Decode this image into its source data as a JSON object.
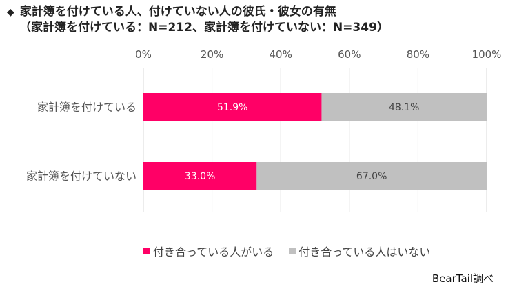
{
  "title": {
    "bullet": "◆",
    "line1": "家計簿を付けている人、付けていない人の彼氏・彼女の有無",
    "line2": "（家計簿を付けている：N=212、家計簿を付けていない：N=349）"
  },
  "chart_data": {
    "type": "bar",
    "orientation": "horizontal",
    "stacked": true,
    "categories": [
      "家計簿を付けている",
      "家計簿を付けていない"
    ],
    "series": [
      {
        "name": "付き合っている人がいる",
        "values": [
          51.9,
          33.0
        ],
        "labels": [
          "51.9%",
          "33.0%"
        ],
        "color": "#ff0066",
        "label_color": "#ffffff"
      },
      {
        "name": "付き合っている人はいない",
        "values": [
          48.1,
          67.0
        ],
        "labels": [
          "48.1%",
          "67.0%"
        ],
        "color": "#c0c0c0",
        "label_color": "#444444"
      }
    ],
    "xlim": [
      0,
      100
    ],
    "ticks": [
      0,
      20,
      40,
      60,
      80,
      100
    ],
    "tick_labels": [
      "0%",
      "20%",
      "40%",
      "60%",
      "80%",
      "100%"
    ],
    "grid": true,
    "legend_position": "bottom"
  },
  "source": "BearTail調べ"
}
